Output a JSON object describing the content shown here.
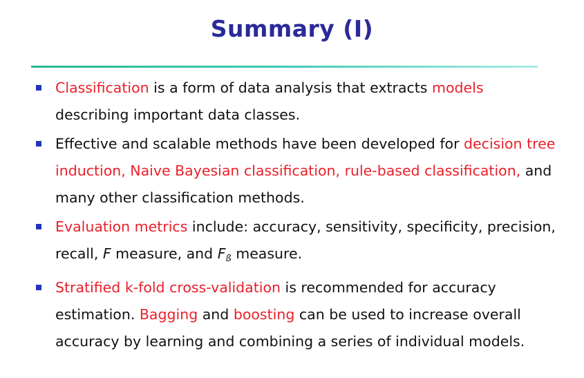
{
  "slide": {
    "title": "Summary (I)",
    "bullets": [
      {
        "segments": [
          {
            "text": "Classification",
            "color": "red"
          },
          {
            "text": " is a form of data analysis that extracts ",
            "color": "black"
          },
          {
            "text": "models",
            "color": "red"
          },
          {
            "text": " describing important data classes.",
            "color": "black"
          }
        ]
      },
      {
        "segments": [
          {
            "text": "Effective and scalable methods have been developed for ",
            "color": "black"
          },
          {
            "text": "decision tree induction, Naive Bayesian classification, rule-based classification,",
            "color": "red"
          },
          {
            "text": " and many other classification methods.",
            "color": "black"
          }
        ]
      },
      {
        "segments": [
          {
            "text": "Evaluation metrics",
            "color": "red"
          },
          {
            "text": " include: accuracy, sensitivity, specificity, precision, recall, ",
            "color": "black"
          },
          {
            "text": "F",
            "color": "black",
            "italic": true
          },
          {
            "text": " measure, and ",
            "color": "black"
          },
          {
            "text": "F",
            "color": "black",
            "italic": true
          },
          {
            "text": "ß",
            "color": "black",
            "subscript": true
          },
          {
            "text": " measure.",
            "color": "black"
          }
        ]
      },
      {
        "segments": [
          {
            "text": "Stratified k-fold cross-validation",
            "color": "red"
          },
          {
            "text": " is recommended for accuracy estimation.  ",
            "color": "black"
          },
          {
            "text": "Bagging",
            "color": "red"
          },
          {
            "text": " and ",
            "color": "black"
          },
          {
            "text": "boosting",
            "color": "red"
          },
          {
            "text": " can be used to increase overall accuracy by learning and combining a series of individual models.",
            "color": "black"
          }
        ]
      }
    ]
  },
  "colors": {
    "title": "#2a2a9a",
    "highlight": "#e8202a",
    "text": "#111111",
    "bullet_marker": "#2233bb",
    "rule": "#3fc9b0"
  }
}
